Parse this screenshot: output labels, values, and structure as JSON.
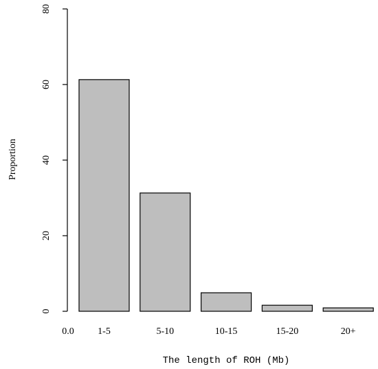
{
  "chart_data": {
    "type": "bar",
    "title": "",
    "xlabel": "The length of ROH (Mb)",
    "ylabel": "Proportion",
    "categories": [
      "1-5",
      "5-10",
      "10-15",
      "15-20",
      "20+"
    ],
    "values": [
      61.3,
      31.3,
      4.9,
      1.6,
      0.9
    ],
    "ylim": [
      0,
      80
    ],
    "yticks": [
      "0",
      "20",
      "40",
      "60",
      "80"
    ],
    "x_origin_label": "0.0",
    "grid": false,
    "legend": "none",
    "colors": {
      "bar_fill": "#bebebe",
      "bar_stroke": "#000000"
    }
  }
}
